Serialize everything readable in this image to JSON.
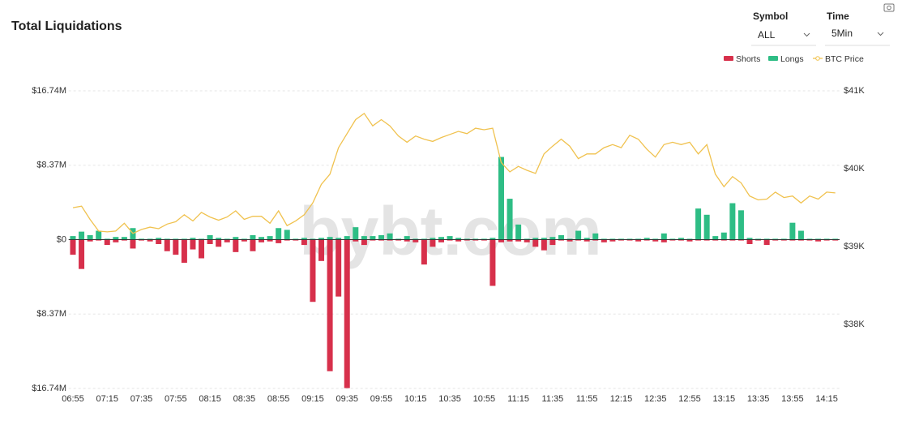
{
  "ui": {
    "symbol_label": "Symbol",
    "symbol_value": "ALL",
    "time_label": "Time",
    "time_value": "5Min"
  },
  "chart_data": {
    "type": "bar",
    "title": "Total Liquidations",
    "watermark": "bybt.com",
    "categories": [
      "06:55",
      null,
      null,
      null,
      "07:15",
      null,
      null,
      null,
      "07:35",
      null,
      null,
      null,
      "07:55",
      null,
      null,
      null,
      "08:15",
      null,
      null,
      null,
      "08:35",
      null,
      null,
      null,
      "08:55",
      null,
      null,
      null,
      "09:15",
      null,
      null,
      null,
      "09:35",
      null,
      null,
      null,
      "09:55",
      null,
      null,
      null,
      "10:15",
      null,
      null,
      null,
      "10:35",
      null,
      null,
      null,
      "10:55",
      null,
      null,
      null,
      "11:15",
      null,
      null,
      null,
      "11:35",
      null,
      null,
      null,
      "11:55",
      null,
      null,
      null,
      "12:15",
      null,
      null,
      null,
      "12:35",
      null,
      null,
      null,
      "12:55",
      null,
      null,
      null,
      "13:15",
      null,
      null,
      null,
      "13:35",
      null,
      null,
      null,
      "13:55",
      null,
      null,
      null,
      "14:15",
      null
    ],
    "series": [
      {
        "name": "Shorts",
        "color": "#d7304b",
        "values": [
          -1.7,
          -3.3,
          -0.2,
          -0.1,
          -0.6,
          -0.3,
          -0.1,
          -1.0,
          -0.1,
          -0.2,
          -0.5,
          -1.3,
          -1.7,
          -2.6,
          -1.1,
          -2.1,
          -0.5,
          -0.8,
          -0.3,
          -1.4,
          -0.2,
          -1.3,
          -0.3,
          -0.2,
          -0.4,
          -0.1,
          -0.1,
          -0.6,
          -7.0,
          -2.4,
          -14.8,
          -6.4,
          -16.7,
          -0.2,
          -0.6,
          -0.1,
          -0.1,
          -0.1,
          -0.1,
          -0.2,
          -0.3,
          -2.8,
          -0.8,
          -0.3,
          -0.1,
          -0.2,
          -0.1,
          -0.1,
          -0.1,
          -5.2,
          -0.3,
          -0.2,
          -0.2,
          -0.3,
          -0.8,
          -1.2,
          -0.6,
          -0.1,
          -0.2,
          -0.1,
          -0.2,
          -0.1,
          -0.3,
          -0.2,
          -0.1,
          -0.1,
          -0.2,
          -0.1,
          -0.2,
          -0.3,
          -0.1,
          -0.1,
          -0.2,
          -0.1,
          -0.1,
          -0.1,
          -0.1,
          -0.1,
          -0.1,
          -0.5,
          -0.1,
          -0.6,
          -0.1,
          -0.1,
          -0.1,
          -0.1,
          -0.1,
          -0.2,
          -0.1,
          -0.1
        ]
      },
      {
        "name": "Longs",
        "color": "#2ebd85",
        "values": [
          0.4,
          0.9,
          0.5,
          1.0,
          0.1,
          0.3,
          0.3,
          1.3,
          0.1,
          0.1,
          0.2,
          0.1,
          0.1,
          0.1,
          0.2,
          0.1,
          0.5,
          0.2,
          0.1,
          0.3,
          0.1,
          0.5,
          0.3,
          0.4,
          1.3,
          1.1,
          0.1,
          0.2,
          0.1,
          0.2,
          0.3,
          0.2,
          0.4,
          1.4,
          0.4,
          0.4,
          0.5,
          0.7,
          0.1,
          0.4,
          0.1,
          0.1,
          0.2,
          0.3,
          0.4,
          0.2,
          0.1,
          0.1,
          0.1,
          0.2,
          9.3,
          4.6,
          1.7,
          0.1,
          0.2,
          0.2,
          0.3,
          0.5,
          0.1,
          1.0,
          0.2,
          0.7,
          0.1,
          0.1,
          0.1,
          0.1,
          0.1,
          0.2,
          0.1,
          0.7,
          0.1,
          0.2,
          0.1,
          3.5,
          2.8,
          0.4,
          0.8,
          4.1,
          3.3,
          0.2,
          0.1,
          0.1,
          0.1,
          0.1,
          1.9,
          1.0,
          0.1,
          0.1,
          0.1,
          0.1
        ]
      },
      {
        "name": "BTC Price",
        "color": "#f0c24f",
        "type": "line",
        "axis": "y2",
        "values": [
          39.5,
          39.52,
          39.35,
          39.2,
          39.19,
          39.2,
          39.3,
          39.17,
          39.22,
          39.25,
          39.23,
          39.29,
          39.32,
          39.41,
          39.33,
          39.44,
          39.38,
          39.34,
          39.38,
          39.46,
          39.35,
          39.39,
          39.39,
          39.3,
          39.46,
          39.27,
          39.33,
          39.41,
          39.56,
          39.8,
          39.93,
          40.27,
          40.45,
          40.63,
          40.71,
          40.55,
          40.63,
          40.55,
          40.42,
          40.34,
          40.42,
          40.38,
          40.35,
          40.4,
          40.44,
          40.48,
          40.45,
          40.52,
          40.5,
          40.52,
          40.08,
          39.96,
          40.03,
          39.98,
          39.94,
          40.19,
          40.29,
          40.38,
          40.29,
          40.13,
          40.19,
          40.19,
          40.27,
          40.31,
          40.27,
          40.43,
          40.38,
          40.25,
          40.15,
          40.31,
          40.34,
          40.31,
          40.34,
          40.19,
          40.31,
          39.93,
          39.77,
          39.9,
          39.82,
          39.65,
          39.6,
          39.61,
          39.7,
          39.63,
          39.65,
          39.56,
          39.65,
          39.61,
          39.7,
          39.69
        ]
      }
    ],
    "ylim": [
      -16.74,
      16.74
    ],
    "yticks": [
      {
        "value": 16.74,
        "label": "$16.74M"
      },
      {
        "value": 8.37,
        "label": "$8.37M"
      },
      {
        "value": 0,
        "label": "$0"
      },
      {
        "value": -8.37,
        "label": "$8.37M"
      },
      {
        "value": -16.74,
        "label": "$16.74M"
      }
    ],
    "y2lim": [
      37.18,
      41
    ],
    "y2ticks": [
      {
        "value": 41,
        "label": "$41K"
      },
      {
        "value": 40,
        "label": "$40K"
      },
      {
        "value": 39,
        "label": "$39K"
      },
      {
        "value": 38,
        "label": "$38K"
      }
    ],
    "grid": true,
    "legend": "top-right"
  }
}
